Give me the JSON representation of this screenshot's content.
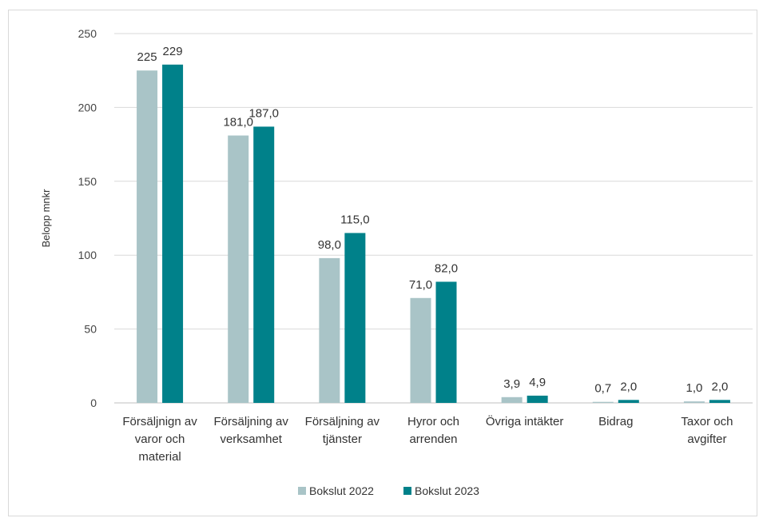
{
  "chart_data": {
    "type": "bar",
    "categories": [
      [
        "Försäljnign av",
        "varor och",
        "material"
      ],
      [
        "Försäljning av",
        "verksamhet"
      ],
      [
        "Försäljning av",
        "tjänster"
      ],
      [
        "Hyror och",
        "arrenden"
      ],
      [
        "Övriga intäkter"
      ],
      [
        "Bidrag"
      ],
      [
        "Taxor och",
        "avgifter"
      ]
    ],
    "series": [
      {
        "name": "Bokslut 2022",
        "color": "#a9c4c7",
        "values": [
          225,
          181,
          98,
          71,
          3.9,
          0.7,
          1
        ],
        "labels": [
          "225",
          "181,0",
          "98,0",
          "71,0",
          "3,9",
          "0,7",
          "1,0"
        ]
      },
      {
        "name": "Bokslut 2023",
        "color": "#00818a",
        "values": [
          229,
          187,
          115,
          82,
          4.9,
          2,
          2
        ],
        "labels": [
          "229",
          "187,0",
          "115,0",
          "82,0",
          "4,9",
          "2,0",
          "2,0"
        ]
      }
    ],
    "ylabel": "Belopp mnkr",
    "ylim": [
      0,
      250
    ],
    "yticks": [
      "0",
      "50",
      "100",
      "150",
      "200",
      "250"
    ],
    "grid": true,
    "legend": "bottom"
  }
}
